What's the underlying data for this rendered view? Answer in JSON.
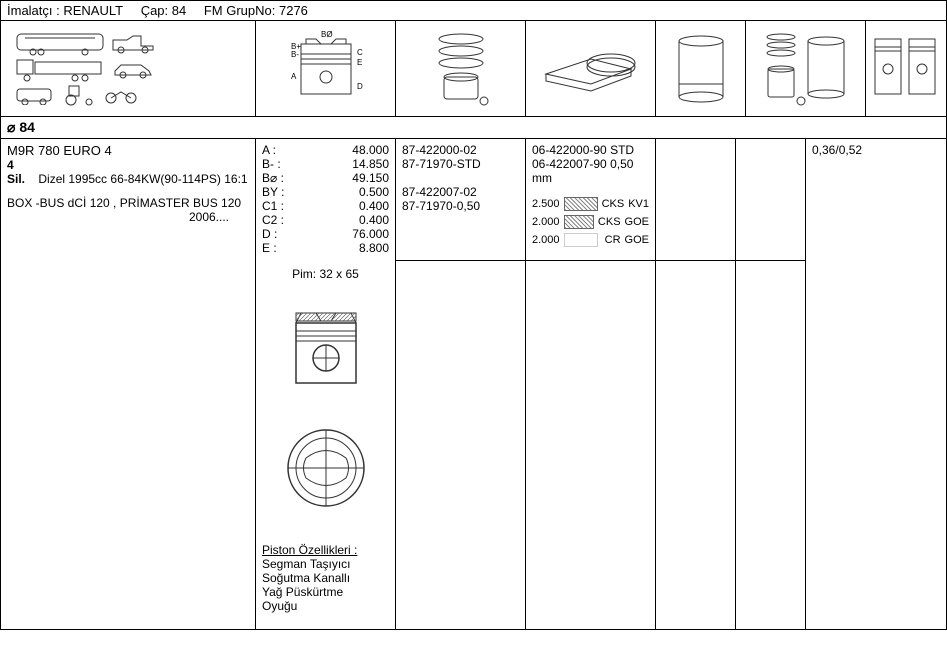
{
  "header": {
    "manufacturer_label": "İmalatçı : RENAULT",
    "diameter_label": "Çap: 84",
    "group_label": "FM GrupNo: 7276"
  },
  "diameter_bar": "⌀ 84",
  "engine": {
    "model": "M9R 780 EURO 4",
    "cyl": "4",
    "cyl_label": "Sil.",
    "spec": "Dizel 1995cc 66-84KW(90-114PS) 16:1",
    "applications": "BOX -BUS dCİ 120 , PRİMASTER BUS 120",
    "year": "2006...."
  },
  "dims": [
    {
      "k": "A :",
      "v": "48.000"
    },
    {
      "k": "B- :",
      "v": "14.850"
    },
    {
      "k": "B⌀ :",
      "v": "49.150"
    },
    {
      "k": "BY :",
      "v": "0.500"
    },
    {
      "k": "C1 :",
      "v": "0.400"
    },
    {
      "k": "C2 :",
      "v": "0.400"
    },
    {
      "k": "D :",
      "v": "76.000"
    },
    {
      "k": "E :",
      "v": "8.800"
    }
  ],
  "pim": "Pim: 32 x 65",
  "features": {
    "title": "Piston Özellikleri :",
    "lines": [
      "Segman Taşıyıcı",
      "Soğutma Kanallı",
      "Yağ Püskürtme",
      "Oyuğu"
    ]
  },
  "parts1": [
    "87-422000-02",
    "87-71970-STD",
    "",
    "87-422007-02",
    "87-71970-0,50"
  ],
  "parts2": [
    "06-422000-90 STD",
    "06-422007-90 0,50 mm"
  ],
  "ring_specs": [
    {
      "w": "2.500",
      "hatch": true,
      "col1": "CKS",
      "col2": "KV1"
    },
    {
      "w": "2.000",
      "hatch": true,
      "col1": "CKS",
      "col2": "GOE"
    },
    {
      "w": "2.000",
      "hatch": false,
      "col1": "CR",
      "col2": "GOE"
    }
  ],
  "weight": "0,36/0,52"
}
